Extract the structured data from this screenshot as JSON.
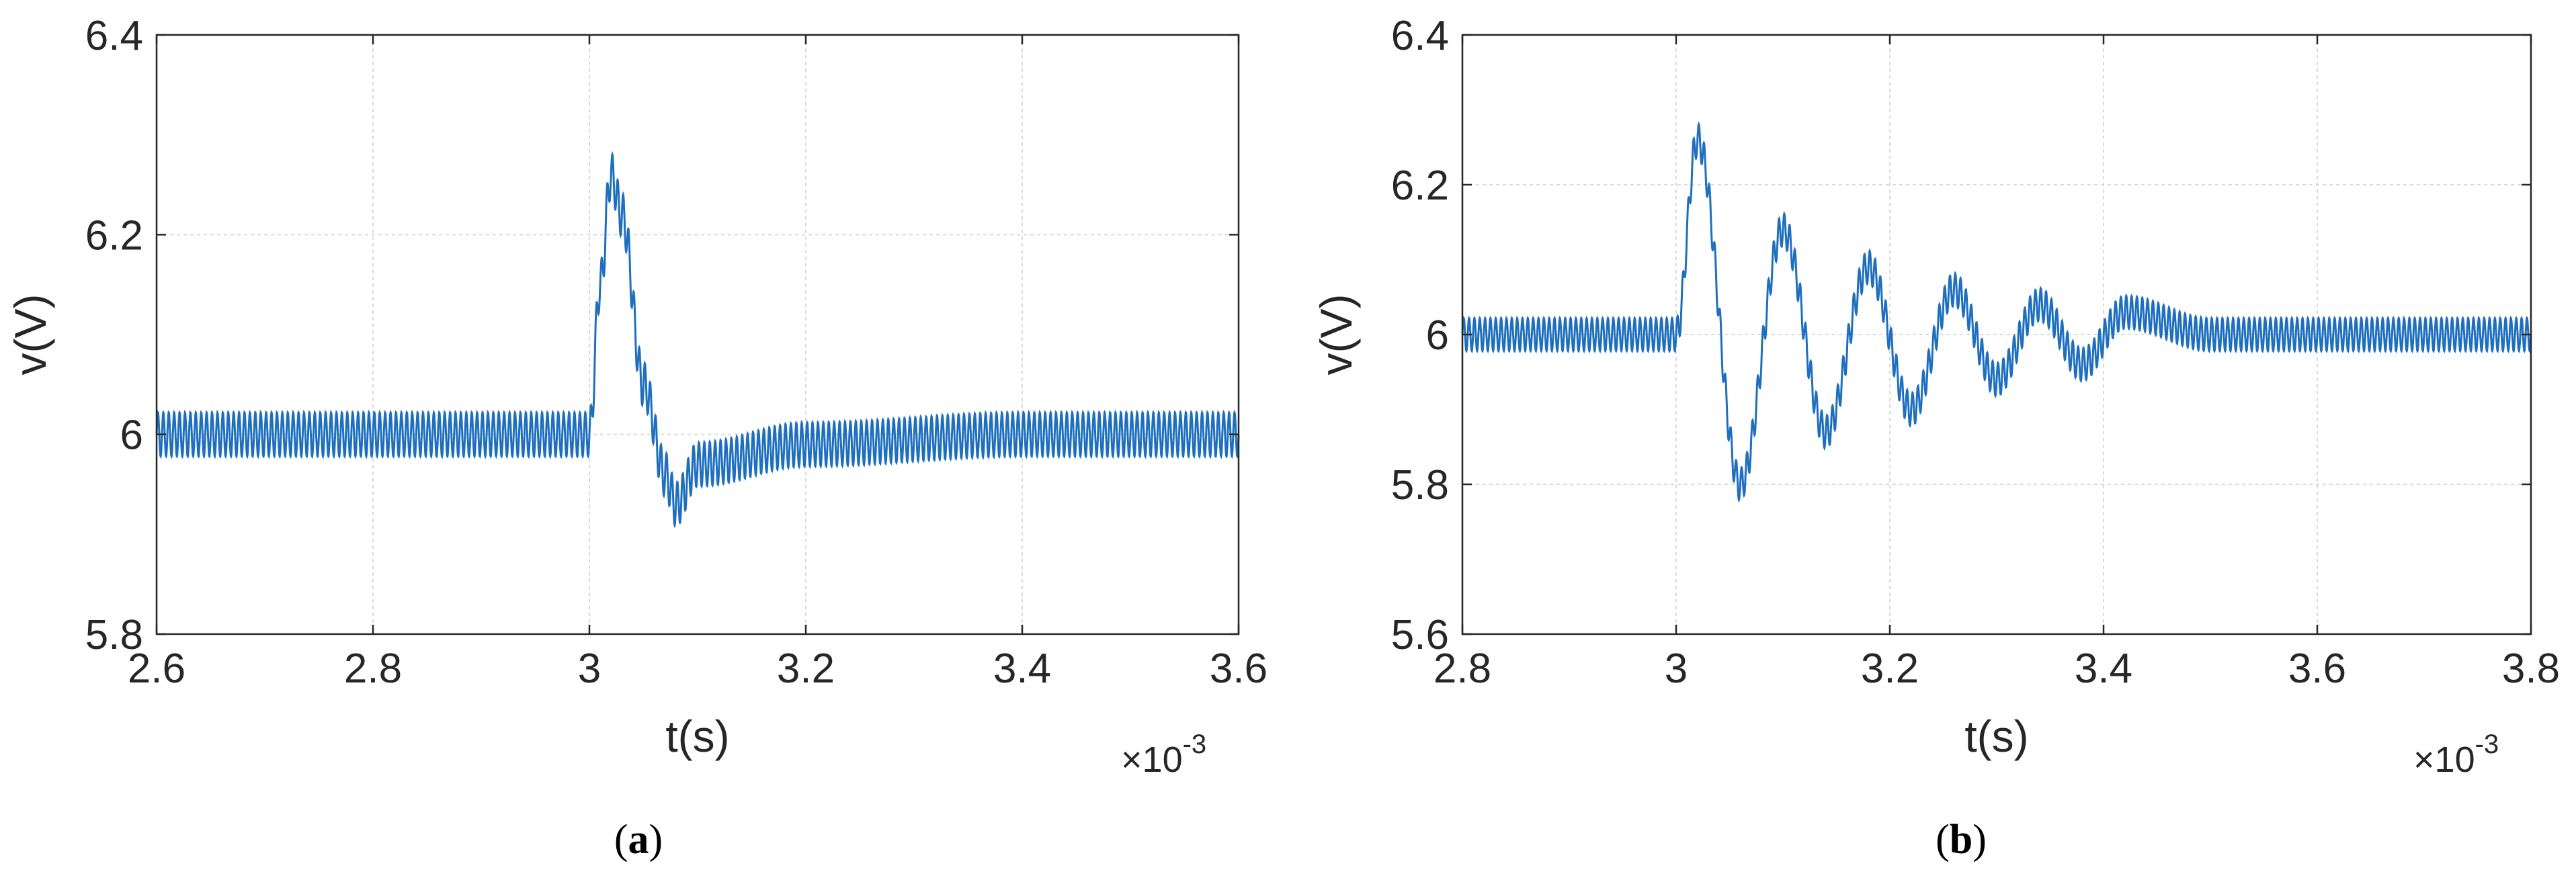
{
  "chart_data": [
    {
      "type": "line",
      "panel": "a",
      "caption": [
        "(",
        "a",
        ")"
      ],
      "title": "",
      "xlabel": "t(s)",
      "ylabel": "v(V)",
      "x_exponent": [
        "×10",
        "-3"
      ],
      "xlim": [
        0.0026,
        0.0036
      ],
      "ylim": [
        5.8,
        6.4
      ],
      "x_ticks": [
        0.0026,
        0.0028,
        0.003,
        0.0032,
        0.0034,
        0.0036
      ],
      "x_tick_labels": [
        "2.6",
        "2.8",
        "3",
        "3.2",
        "3.4",
        "3.6"
      ],
      "y_ticks": [
        5.8,
        6.0,
        6.2,
        6.4
      ],
      "y_tick_labels": [
        "5.8",
        "6",
        "6.2",
        "6.4"
      ],
      "grid": true,
      "color": "#1f6fbf",
      "series": [
        {
          "description_of_waveform": "ripple ~±0.02 V around 6 V; step at t=3.0e-3 with peak 6.26 V, undershoot 5.93 V, then steady ripple",
          "x": [
            0.0026,
            0.0029,
            0.003,
            0.00301,
            0.00302,
            0.00303,
            0.00305,
            0.00307,
            0.00308,
            0.0031,
            0.0032,
            0.0034,
            0.0036
          ],
          "y": [
            6.0,
            6.0,
            6.0,
            6.15,
            6.26,
            6.22,
            6.05,
            5.96,
            5.93,
            5.97,
            5.99,
            6.0,
            6.0
          ]
        }
      ]
    },
    {
      "type": "line",
      "panel": "b",
      "caption": [
        "(",
        "b",
        ")"
      ],
      "title": "",
      "xlabel": "t(s)",
      "ylabel": "v(V)",
      "x_exponent": [
        "×10",
        "-3"
      ],
      "xlim": [
        0.0028,
        0.0038
      ],
      "ylim": [
        5.6,
        6.4
      ],
      "x_ticks": [
        0.0028,
        0.003,
        0.0032,
        0.0034,
        0.0036,
        0.0038
      ],
      "x_tick_labels": [
        "2.8",
        "3",
        "3.2",
        "3.4",
        "3.6",
        "3.8"
      ],
      "y_ticks": [
        5.6,
        5.8,
        6.0,
        6.2,
        6.4
      ],
      "y_tick_labels": [
        "5.6",
        "5.8",
        "6",
        "6.2",
        "6.4"
      ],
      "grid": true,
      "color": "#1f6fbf",
      "series": [
        {
          "x": [
            0.0028,
            0.003,
            0.00302,
            0.00306,
            0.0031,
            0.00314,
            0.00318,
            0.00322,
            0.00326,
            0.0033,
            0.00334,
            0.00338,
            0.00342,
            0.0035,
            0.0038
          ],
          "y": [
            6.0,
            6.0,
            6.26,
            5.8,
            6.14,
            5.87,
            6.09,
            5.9,
            6.06,
            5.94,
            6.04,
            5.96,
            6.03,
            6.0,
            6.0
          ]
        }
      ]
    }
  ]
}
